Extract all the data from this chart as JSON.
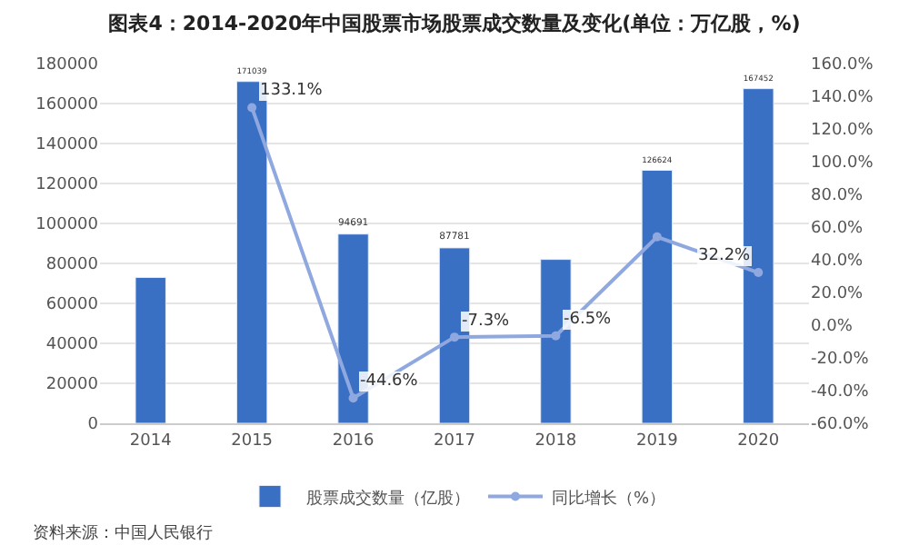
{
  "chart_data": {
    "type": "bar",
    "title": "图表4：2014-2020年中国股票市场股票成交数量及变化(单位：万亿股，%)",
    "categories": [
      "2014",
      "2015",
      "2016",
      "2017",
      "2018",
      "2019",
      "2020"
    ],
    "series": [
      {
        "name": "股票成交数量（亿股）",
        "color": "#3a70c4",
        "values": [
          73000,
          171039,
          94691,
          87781,
          82000,
          126624,
          167452
        ],
        "value_labels": [
          null,
          "171039",
          "94691",
          "87781",
          null,
          "126624",
          "167452"
        ]
      },
      {
        "name": "同比增长（%）",
        "type": "line",
        "axis": "y2",
        "color": "#8fa8e0",
        "marker": "circle",
        "values": [
          null,
          133.1,
          -44.6,
          -7.3,
          -6.5,
          54,
          32.2
        ],
        "value_labels": [
          null,
          "133.1%",
          "-44.6%",
          "-7.3%",
          "-6.5%",
          null,
          "32.2%"
        ]
      }
    ],
    "ylim": [
      0,
      180000
    ],
    "yticks": [
      0,
      20000,
      40000,
      60000,
      80000,
      100000,
      120000,
      140000,
      160000,
      180000
    ],
    "y2lim": [
      -60,
      160
    ],
    "y2ticks": [
      {
        "value": -60,
        "label": "-60.0%"
      },
      {
        "value": -40,
        "label": "-40.0%"
      },
      {
        "value": -20,
        "label": "-20.0%"
      },
      {
        "value": 0,
        "label": "0.0%"
      },
      {
        "value": 20,
        "label": "20.0%"
      },
      {
        "value": 40,
        "label": "40.0%"
      },
      {
        "value": 60,
        "label": "60.0%"
      },
      {
        "value": 80,
        "label": "80.0%"
      },
      {
        "value": 100,
        "label": "100.0%"
      },
      {
        "value": 120,
        "label": "120.0%"
      },
      {
        "value": 140,
        "label": "140.0%"
      },
      {
        "value": 160,
        "label": "160.0%"
      }
    ],
    "grid": "y",
    "legend": "bottom",
    "annotations": [
      "资料来源：中国人民银行"
    ]
  }
}
